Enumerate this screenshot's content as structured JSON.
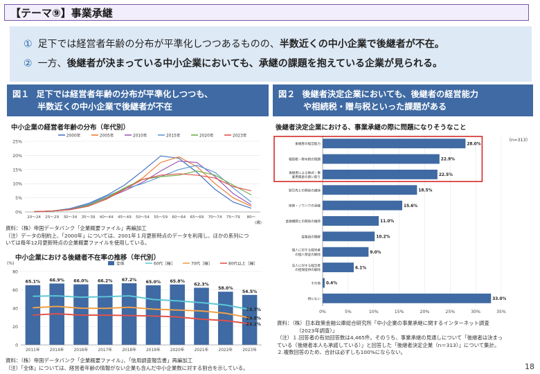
{
  "header": {
    "title": "【テーマ⑨】事業承継"
  },
  "summary": {
    "item1": {
      "num": "①",
      "text": "足下では経営者年齢の分布が平準化しつつあるものの、",
      "bold": "半数近くの中小企業で後継者が不在。"
    },
    "item2": {
      "num": "②",
      "text": "一方、",
      "bold": "後継者が決まっている中小企業においても、承継の課題を抱えている企業が見られる。"
    }
  },
  "fig1": {
    "label": "図１",
    "title_line1": "足下では経営者年齢の分布が平準化しつつも、",
    "title_line2": "半数近くの中小企業で後継者が不在"
  },
  "fig2": {
    "label": "図２",
    "title_line1": "後継者決定企業においても、後継者の経営能力",
    "title_line2": "や相続税・贈与税といった課題がある"
  },
  "chart_data": [
    {
      "type": "line",
      "title": "中小企業の経営者年齢の分布（年代別）",
      "categories": [
        "20～24",
        "25～29",
        "30～34",
        "35～39",
        "40～44",
        "45～49",
        "50～54",
        "55～59",
        "60～64",
        "65～69",
        "70～74",
        "75～79",
        "80～"
      ],
      "x_unit": "(歳)",
      "ylim": [
        0,
        25
      ],
      "yticks": [
        "0%",
        "5%",
        "10%",
        "15%",
        "20%",
        "25%"
      ],
      "series": [
        {
          "name": "2000年",
          "color": "#4472c4",
          "values": [
            0.1,
            0.3,
            1.2,
            3.0,
            5.8,
            9.5,
            14.5,
            19.8,
            19.0,
            14.0,
            8.0,
            3.5,
            1.3
          ]
        },
        {
          "name": "2005年",
          "color": "#ed7d31",
          "values": [
            0.1,
            0.3,
            1.0,
            2.6,
            5.0,
            8.0,
            12.0,
            17.5,
            19.5,
            16.0,
            10.0,
            5.0,
            2.0
          ]
        },
        {
          "name": "2010年",
          "color": "#9e5bb5",
          "values": [
            0.1,
            0.3,
            0.9,
            2.5,
            4.8,
            7.5,
            10.5,
            14.5,
            18.0,
            17.5,
            12.5,
            6.5,
            2.5
          ]
        },
        {
          "name": "2015年",
          "color": "#5b9bd5",
          "values": [
            0.1,
            0.3,
            0.9,
            2.6,
            5.5,
            8.2,
            10.0,
            12.5,
            15.0,
            16.5,
            14.0,
            8.5,
            3.5
          ]
        },
        {
          "name": "2020年",
          "color": "#70ad47",
          "values": [
            0.1,
            0.3,
            0.8,
            2.3,
            5.0,
            8.5,
            11.5,
            12.5,
            13.0,
            14.5,
            13.0,
            9.5,
            6.0
          ]
        },
        {
          "name": "2023年",
          "color": "#e0524a",
          "values": [
            0.1,
            0.3,
            0.8,
            2.0,
            4.5,
            8.0,
            11.5,
            13.0,
            13.5,
            13.0,
            12.0,
            9.0,
            7.5
          ]
        }
      ]
    },
    {
      "type": "bar",
      "title": "中小企業における後継者不在率の推移（年代別）",
      "y_unit": "(%)",
      "categories": [
        "2011年",
        "2014年",
        "2016年",
        "2017年",
        "2018年",
        "2019年",
        "2020年",
        "2021年",
        "2022年",
        "2023年"
      ],
      "ylim": [
        0,
        80
      ],
      "yticks": [
        "0",
        "20",
        "40",
        "60",
        "80"
      ],
      "bar_series": {
        "name": "全体",
        "color": "#3f6aa3",
        "values": [
          65.1,
          66.9,
          66.0,
          66.2,
          67.2,
          65.0,
          65.8,
          62.3,
          58.0,
          54.5
        ],
        "labels": [
          "65.1%",
          "66.9%",
          "66.0%",
          "66.2%",
          "67.2%",
          "65.0%",
          "65.8%",
          "62.3%",
          "58.0%",
          "54.5%"
        ]
      },
      "line_series": [
        {
          "name": "60代［線］",
          "color": "#5dc6d6",
          "values": [
            53.0,
            53.5,
            52.0,
            52.5,
            53.5,
            49.5,
            48.0,
            46.0,
            43.5,
            38.7
          ],
          "end_label": "38.7%"
        },
        {
          "name": "70代［線］",
          "color": "#f0a14a",
          "values": [
            40.5,
            42.0,
            40.0,
            39.8,
            41.0,
            39.0,
            38.0,
            37.0,
            34.5,
            29.5
          ],
          "end_label": "29.5%"
        },
        {
          "name": "80代以上［線］",
          "color": "#e0524a",
          "values": [
            32.5,
            34.0,
            32.5,
            32.5,
            32.0,
            31.5,
            30.5,
            28.0,
            26.5,
            23.1
          ],
          "end_label": "23.1%"
        }
      ]
    },
    {
      "type": "bar",
      "orientation": "horizontal",
      "title": "後継者決定企業における、事業承継の際に問題になりそうなこと",
      "n_label": "（n=313）",
      "categories": [
        "後継者の経営能力",
        "相続税・贈与税の問題",
        "後継者による株式・事業用資産の買い取り",
        "取引先との関係の維持",
        "技術・ノウハウの承継",
        "金融機関との関係の維持",
        "従業員の理解",
        "個人に対する経営者の個人保証の解除",
        "法人に対する経営者の担保提供の解除",
        "その他",
        "特にない"
      ],
      "values": [
        28.0,
        22.9,
        22.5,
        18.5,
        15.6,
        11.0,
        10.2,
        9.0,
        6.1,
        0.4,
        33.0
      ],
      "labels": [
        "28.0%",
        "22.9%",
        "22.5%",
        "18.5%",
        "15.6%",
        "11.0%",
        "10.2%",
        "9.0%",
        "6.1%",
        "0.4%",
        "33.0%"
      ],
      "xlim": [
        0,
        35
      ],
      "xticks": [
        "0%",
        "5%",
        "10%",
        "15%",
        "20%",
        "25%",
        "30%",
        "35%"
      ],
      "color": "#3f6aa3",
      "highlight": "top-3 red box"
    }
  ],
  "notes": {
    "fig1_src1": "資料：（株）帝国データバンク「企業概要ファイル」再編加工",
    "fig1_note1": "（注）データの制約上、「2000年」については、2001年１月更新時点のデータを利用し、ほかの系列につ",
    "fig1_note2": "いては毎年12月更新時点の企業概要ファイルを使用している。",
    "fig1_src2": "資料：（株）帝国データバンク「企業概要ファイル」、「信用調査報告書」再編加工",
    "fig1_note3": "（注）「全体」については、経営者年齢の情報がない企業も含んだ中小企業数に対する割合を示している。",
    "fig2_src1": "資料：（株）日本政策金融公庫総合研究所「中小企業の事業承継に関するインターネット調査",
    "fig2_src2": "（2023年調査）」",
    "fig2_note1": "（注）１.回答者の有効回答数は4,465件。そのうち、事業承継の見通しについて「後継者は決まっ",
    "fig2_note2": "ている（後継者本人も承諾している）」と回答した「後継者決定企業（n＝313）」について集計。",
    "fig2_note3": "２.複数回答のため、合計は必ずしも100%にならない。"
  },
  "page_number": "18"
}
